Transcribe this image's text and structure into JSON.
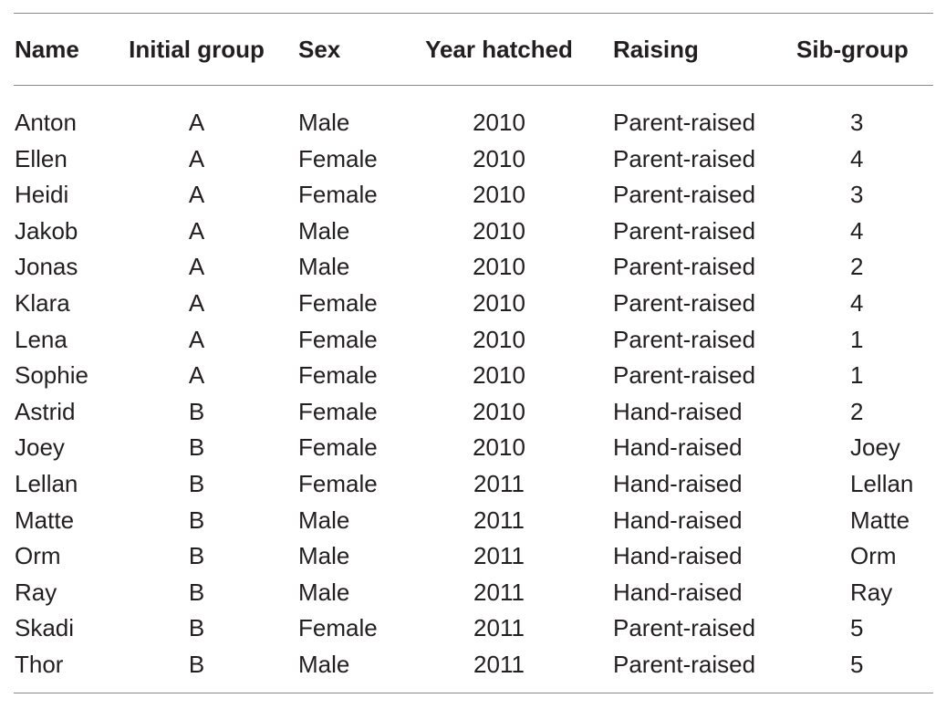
{
  "table": {
    "headers": [
      "Name",
      "Initial group",
      "Sex",
      "Year hatched",
      "Raising",
      "Sib-group"
    ],
    "rows": [
      [
        "Anton",
        "A",
        "Male",
        "2010",
        "Parent-raised",
        "3"
      ],
      [
        "Ellen",
        "A",
        "Female",
        "2010",
        "Parent-raised",
        "4"
      ],
      [
        "Heidi",
        "A",
        "Female",
        "2010",
        "Parent-raised",
        "3"
      ],
      [
        "Jakob",
        "A",
        "Male",
        "2010",
        "Parent-raised",
        "4"
      ],
      [
        "Jonas",
        "A",
        "Male",
        "2010",
        "Parent-raised",
        "2"
      ],
      [
        "Klara",
        "A",
        "Female",
        "2010",
        "Parent-raised",
        "4"
      ],
      [
        "Lena",
        "A",
        "Female",
        "2010",
        "Parent-raised",
        "1"
      ],
      [
        "Sophie",
        "A",
        "Female",
        "2010",
        "Parent-raised",
        "1"
      ],
      [
        "Astrid",
        "B",
        "Female",
        "2010",
        "Hand-raised",
        "2"
      ],
      [
        "Joey",
        "B",
        "Female",
        "2010",
        "Hand-raised",
        "Joey"
      ],
      [
        "Lellan",
        "B",
        "Female",
        "2011",
        "Hand-raised",
        "Lellan"
      ],
      [
        "Matte",
        "B",
        "Male",
        "2011",
        "Hand-raised",
        "Matte"
      ],
      [
        "Orm",
        "B",
        "Male",
        "2011",
        "Hand-raised",
        "Orm"
      ],
      [
        "Ray",
        "B",
        "Male",
        "2011",
        "Hand-raised",
        "Ray"
      ],
      [
        "Skadi",
        "B",
        "Female",
        "2011",
        "Parent-raised",
        "5"
      ],
      [
        "Thor",
        "B",
        "Male",
        "2011",
        "Parent-raised",
        "5"
      ]
    ]
  }
}
